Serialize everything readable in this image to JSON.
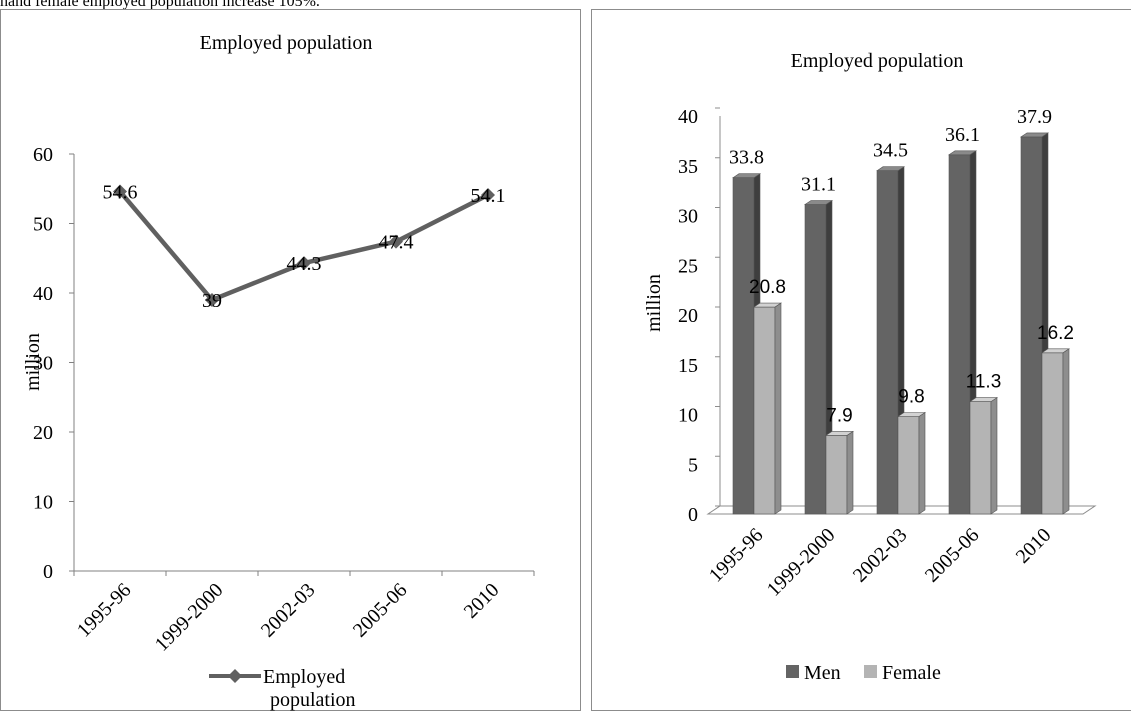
{
  "caption": "hand female employed population increase 105%.",
  "chart_data": [
    {
      "type": "line",
      "title": "Employed population",
      "xlabel": "",
      "ylabel": "million",
      "categories": [
        "1995-96",
        "1999-2000",
        "2002-03",
        "2005-06",
        "2010"
      ],
      "series": [
        {
          "name": "Employed population",
          "values": [
            54.6,
            39,
            44.3,
            47.4,
            54.1
          ]
        }
      ],
      "data_labels": [
        "54.6",
        "39",
        "44.3",
        "47.4",
        "54.1"
      ],
      "ylim": [
        0,
        60
      ],
      "yticks": [
        "0",
        "10",
        "20",
        "30",
        "40",
        "50",
        "60"
      ],
      "grid": false,
      "legend": {
        "position": "bottom",
        "line1": "Employed",
        "line2": "population"
      },
      "colors": {
        "series": "#606060"
      }
    },
    {
      "type": "bar",
      "title": "Employed population",
      "xlabel": "",
      "ylabel": "million",
      "categories": [
        "1995-96",
        "1999-2000",
        "2002-03",
        "2005-06",
        "2010"
      ],
      "series": [
        {
          "name": "Men",
          "values": [
            33.8,
            31.1,
            34.5,
            36.1,
            37.9
          ],
          "labels": [
            "33.8",
            "31.1",
            "34.5",
            "36.1",
            "37.9"
          ]
        },
        {
          "name": "Female",
          "values": [
            20.8,
            7.9,
            9.8,
            11.3,
            16.2
          ],
          "labels": [
            "20.8",
            "7.9",
            "9.8",
            "11.3",
            "16.2"
          ]
        }
      ],
      "ylim": [
        0,
        40
      ],
      "yticks": [
        "0",
        "5",
        "10",
        "15",
        "20",
        "25",
        "30",
        "35",
        "40"
      ],
      "grid": false,
      "legend": {
        "position": "bottom"
      },
      "colors": {
        "men": "#646464",
        "female": "#b4b4b4"
      }
    }
  ]
}
